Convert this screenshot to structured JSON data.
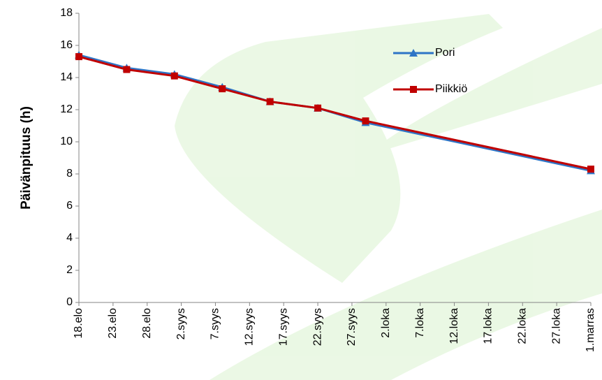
{
  "chart_data": {
    "type": "line",
    "y_label": "Päivänpituus (h)",
    "x": [
      230,
      237,
      244,
      251,
      258,
      265,
      272,
      305
    ],
    "series": [
      {
        "name": "Pori",
        "color": "#2e75c6",
        "marker": "triangle",
        "values": [
          15.4,
          14.6,
          14.2,
          13.4,
          12.5,
          12.1,
          11.2,
          8.2
        ]
      },
      {
        "name": "Piikkiö",
        "color": "#c00000",
        "marker": "square",
        "values": [
          15.3,
          14.5,
          14.1,
          13.3,
          12.5,
          12.1,
          11.3,
          8.3
        ]
      }
    ],
    "xlim": [
      230,
      305
    ],
    "xticks": [
      {
        "value": 230,
        "label": "18.elo"
      },
      {
        "value": 235,
        "label": "23.elo"
      },
      {
        "value": 240,
        "label": "28.elo"
      },
      {
        "value": 245,
        "label": "2.syys"
      },
      {
        "value": 250,
        "label": "7.syys"
      },
      {
        "value": 255,
        "label": "12.syys"
      },
      {
        "value": 260,
        "label": "17.syys"
      },
      {
        "value": 265,
        "label": "22.syys"
      },
      {
        "value": 270,
        "label": "27.syys"
      },
      {
        "value": 275,
        "label": "2.loka"
      },
      {
        "value": 280,
        "label": "7.loka"
      },
      {
        "value": 285,
        "label": "12.loka"
      },
      {
        "value": 290,
        "label": "17.loka"
      },
      {
        "value": 295,
        "label": "22.loka"
      },
      {
        "value": 300,
        "label": "27.loka"
      },
      {
        "value": 305,
        "label": "1.marras"
      }
    ],
    "ylim": [
      0,
      18
    ],
    "yticks": [
      0,
      2,
      4,
      6,
      8,
      10,
      12,
      14,
      16,
      18
    ],
    "grid": false,
    "legend": "upper right"
  }
}
